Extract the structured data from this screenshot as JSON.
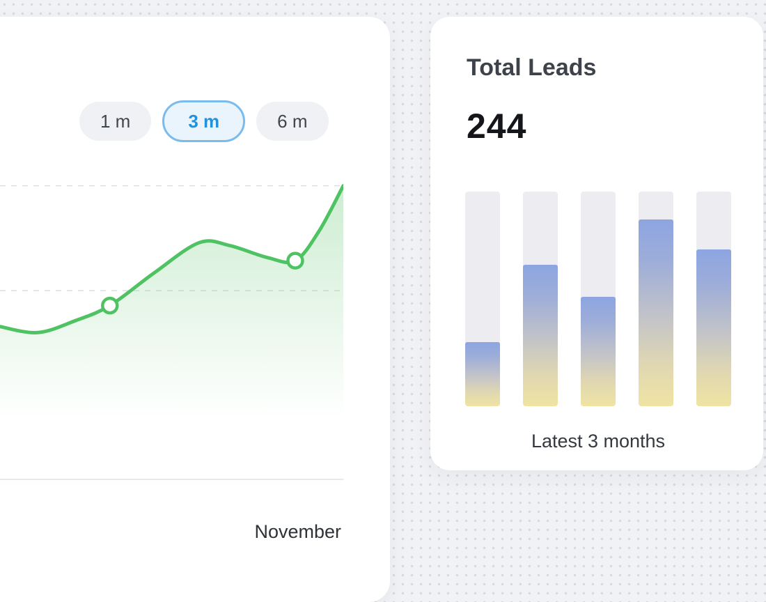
{
  "page": {
    "background_color": "#f1f2f5",
    "dot_pattern_color": "#d8dade",
    "card_color": "#ffffff"
  },
  "left_card": {
    "range_selector": {
      "options": [
        {
          "label": "1 m",
          "selected": false
        },
        {
          "label": "3 m",
          "selected": true
        },
        {
          "label": "6 m",
          "selected": false
        }
      ],
      "selected_text_color": "#2492db",
      "selected_border_color": "#79bbec",
      "pill_background": "#f0f1f4"
    }
  },
  "chart_data": [
    {
      "type": "area",
      "selected_range": "3 m",
      "x_percent": [
        0,
        11,
        22,
        32,
        45,
        58,
        67,
        78,
        86,
        93,
        100
      ],
      "values": [
        51,
        49,
        53,
        58,
        69,
        79,
        78,
        74,
        73,
        83,
        98
      ],
      "marker_indices": [
        3,
        8
      ],
      "x_tick_labels": [
        "November"
      ],
      "gridlines": [
        {
          "value": 98,
          "style": "dashed"
        },
        {
          "value": 63,
          "style": "dashed"
        },
        {
          "value": 0,
          "style": "solid"
        }
      ],
      "line_color": "#4fc263",
      "fill_color": "#69c876",
      "ylim": [
        0,
        100
      ],
      "legend": "none",
      "grid": "horizontal-dashed"
    },
    {
      "type": "bar",
      "title": "Total Leads",
      "total": 244,
      "caption": "Latest 3 months",
      "values_percent": [
        30,
        66,
        51,
        87,
        73
      ],
      "track_color": "#ececf1",
      "fill_gradient": [
        "#8da5e1 0%",
        "#9dadd9 22%",
        "#c2c3c9 52%",
        "#e0d7b2 78%",
        "#efe4a2 100%"
      ],
      "ylim": [
        0,
        100
      ],
      "legend": "none",
      "grid": "off"
    }
  ]
}
